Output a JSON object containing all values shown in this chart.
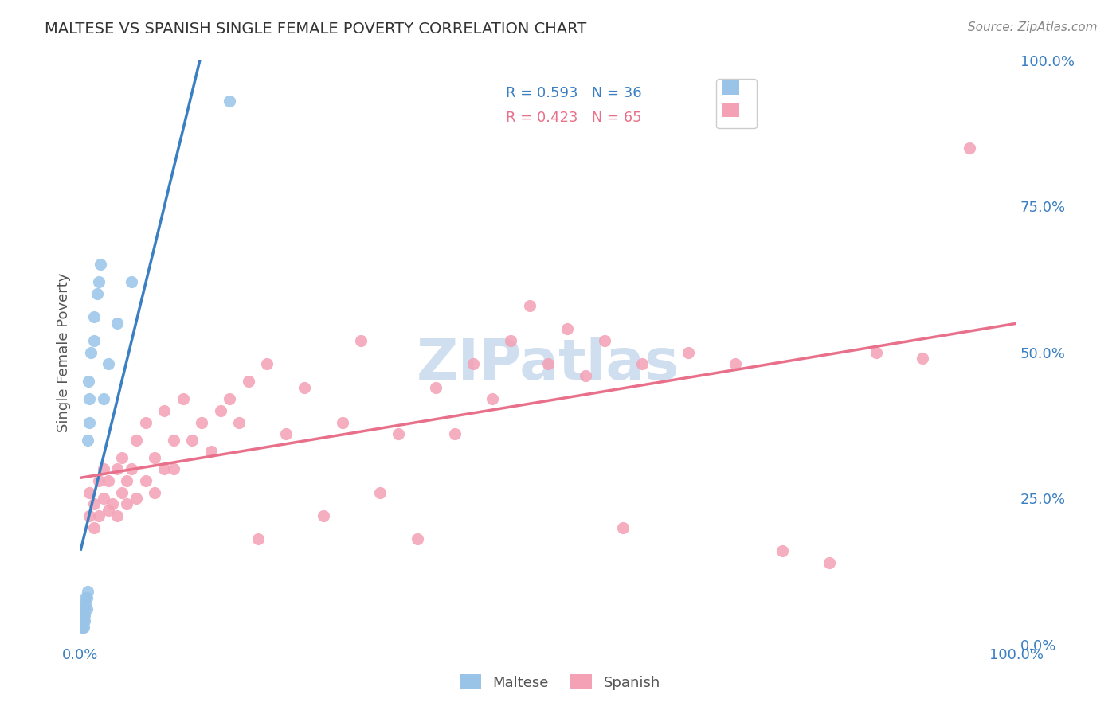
{
  "title": "MALTESE VS SPANISH SINGLE FEMALE POVERTY CORRELATION CHART",
  "source": "Source: ZipAtlas.com",
  "xlabel": "",
  "ylabel": "Single Female Poverty",
  "right_ylabel": "",
  "xlim": [
    0.0,
    1.0
  ],
  "ylim": [
    0.0,
    1.0
  ],
  "xticks": [
    0.0,
    0.25,
    0.5,
    0.75,
    1.0
  ],
  "yticks": [
    0.0,
    0.25,
    0.5,
    0.75,
    1.0
  ],
  "xtick_labels": [
    "0.0%",
    "",
    "",
    "",
    "100.0%"
  ],
  "ytick_labels_right": [
    "0.0%",
    "25.0%",
    "50.0%",
    "75.0%",
    "100.0%"
  ],
  "maltese_color": "#99c4e8",
  "spanish_color": "#f4a0b5",
  "maltese_line_color": "#3a7fc1",
  "spanish_line_color": "#e8708a",
  "watermark_color": "#d0dff0",
  "title_color": "#333333",
  "legend_r_color_maltese": "#3a7fc1",
  "legend_r_color_spanish": "#e8708a",
  "legend_n_color": "#333333",
  "legend_text_maltese": "R = 0.593   N = 36",
  "legend_text_spanish": "R = 0.423   N = 65",
  "maltese_x": [
    0.001,
    0.001,
    0.002,
    0.002,
    0.002,
    0.002,
    0.003,
    0.003,
    0.003,
    0.003,
    0.004,
    0.004,
    0.004,
    0.005,
    0.005,
    0.005,
    0.006,
    0.006,
    0.007,
    0.007,
    0.008,
    0.008,
    0.009,
    0.01,
    0.01,
    0.012,
    0.015,
    0.015,
    0.018,
    0.02,
    0.022,
    0.025,
    0.03,
    0.04,
    0.055,
    0.16
  ],
  "maltese_y": [
    0.04,
    0.05,
    0.03,
    0.04,
    0.05,
    0.06,
    0.03,
    0.04,
    0.04,
    0.05,
    0.03,
    0.04,
    0.05,
    0.04,
    0.05,
    0.06,
    0.07,
    0.08,
    0.06,
    0.08,
    0.09,
    0.35,
    0.45,
    0.38,
    0.42,
    0.5,
    0.52,
    0.56,
    0.6,
    0.62,
    0.65,
    0.42,
    0.48,
    0.55,
    0.62,
    0.93
  ],
  "spanish_x": [
    0.01,
    0.01,
    0.015,
    0.015,
    0.02,
    0.02,
    0.025,
    0.025,
    0.03,
    0.03,
    0.035,
    0.04,
    0.04,
    0.045,
    0.045,
    0.05,
    0.05,
    0.055,
    0.06,
    0.06,
    0.07,
    0.07,
    0.08,
    0.08,
    0.09,
    0.09,
    0.1,
    0.1,
    0.11,
    0.12,
    0.13,
    0.14,
    0.15,
    0.16,
    0.17,
    0.18,
    0.19,
    0.2,
    0.22,
    0.24,
    0.26,
    0.28,
    0.3,
    0.32,
    0.34,
    0.36,
    0.38,
    0.4,
    0.42,
    0.44,
    0.46,
    0.48,
    0.5,
    0.52,
    0.54,
    0.56,
    0.58,
    0.6,
    0.65,
    0.7,
    0.75,
    0.8,
    0.85,
    0.9,
    0.95
  ],
  "spanish_y": [
    0.22,
    0.26,
    0.2,
    0.24,
    0.22,
    0.28,
    0.25,
    0.3,
    0.23,
    0.28,
    0.24,
    0.22,
    0.3,
    0.26,
    0.32,
    0.24,
    0.28,
    0.3,
    0.25,
    0.35,
    0.28,
    0.38,
    0.26,
    0.32,
    0.3,
    0.4,
    0.35,
    0.3,
    0.42,
    0.35,
    0.38,
    0.33,
    0.4,
    0.42,
    0.38,
    0.45,
    0.18,
    0.48,
    0.36,
    0.44,
    0.22,
    0.38,
    0.52,
    0.26,
    0.36,
    0.18,
    0.44,
    0.36,
    0.48,
    0.42,
    0.52,
    0.58,
    0.48,
    0.54,
    0.46,
    0.52,
    0.2,
    0.48,
    0.5,
    0.48,
    0.16,
    0.14,
    0.5,
    0.49,
    0.85
  ],
  "background_color": "#ffffff",
  "grid_color": "#cccccc"
}
